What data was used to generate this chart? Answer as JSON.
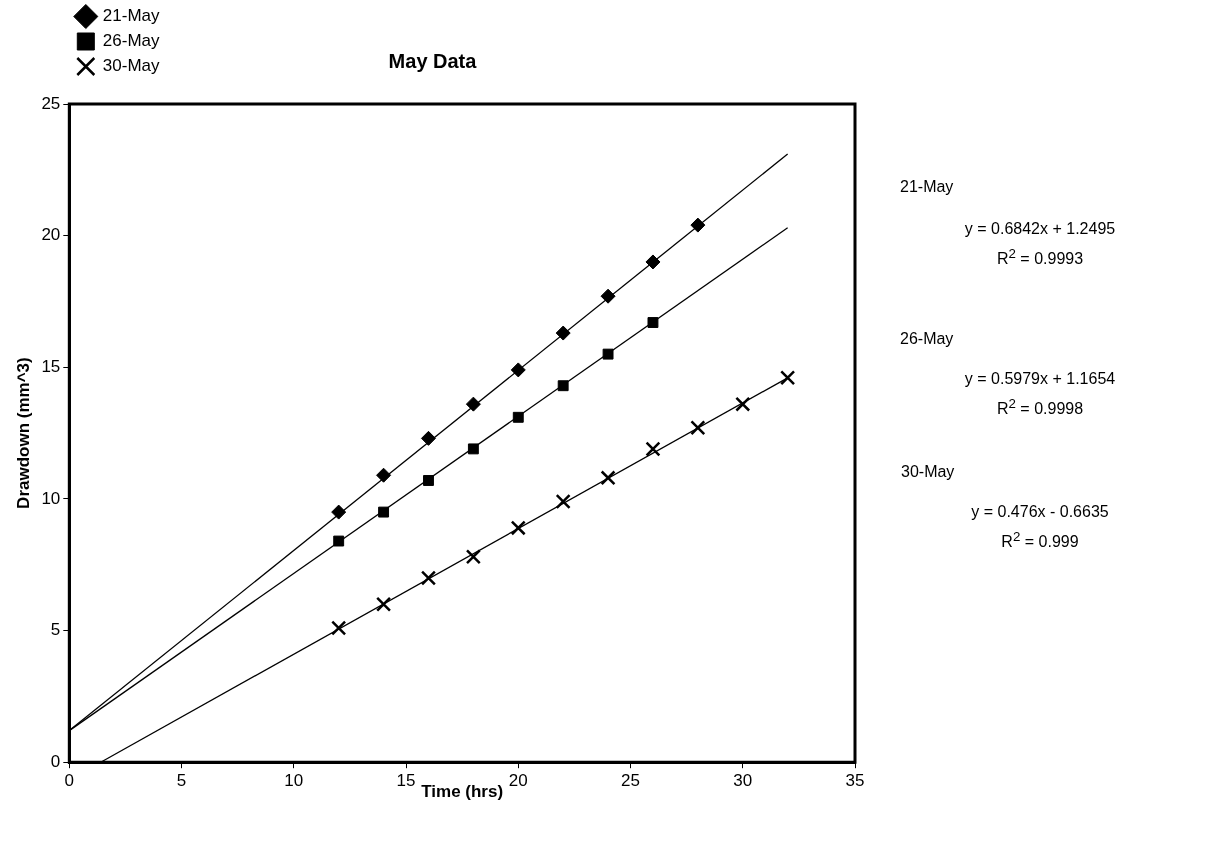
{
  "chart_data": {
    "type": "scatter",
    "title": "May Data",
    "xlabel": "Time (hrs)",
    "ylabel": "Drawdown (mm^3)",
    "xlim": [
      0,
      35
    ],
    "xticks": [
      0,
      5,
      10,
      15,
      20,
      25,
      30,
      35
    ],
    "ylim": [
      0,
      25
    ],
    "yticks": [
      0,
      5,
      10,
      15,
      20,
      25
    ],
    "grid": false,
    "legend": "top left",
    "series": [
      {
        "name": "21-May",
        "color": "#000000",
        "marker": "diamond",
        "x": [
          12,
          14,
          16,
          18,
          20,
          22,
          24,
          26,
          28
        ],
        "values": [
          9.5,
          10.9,
          12.3,
          13.6,
          14.9,
          16.3,
          17.7,
          19.0,
          20.4
        ]
      },
      {
        "name": "26-May",
        "color": "#000000",
        "marker": "square",
        "x": [
          12,
          14,
          16,
          18,
          20,
          22,
          24,
          26
        ],
        "values": [
          8.4,
          9.5,
          10.7,
          11.9,
          13.1,
          14.3,
          15.5,
          16.7
        ]
      },
      {
        "name": "30-May",
        "color": "#000000",
        "marker": "cross",
        "x": [
          12,
          14,
          16,
          18,
          20,
          22,
          24,
          26,
          28,
          30,
          32
        ],
        "values": [
          5.1,
          6.0,
          7.0,
          7.8,
          8.9,
          9.9,
          10.8,
          11.9,
          12.7,
          13.6,
          14.6
        ]
      },
      {
        "type": "line",
        "color": "#000000",
        "marker": "none",
        "x": [
          0,
          32
        ],
        "values": [
          1.2,
          23.1
        ]
      },
      {
        "type": "line",
        "color": "#000000",
        "marker": "none",
        "x": [
          0,
          32
        ],
        "values": [
          1.2,
          20.3
        ]
      },
      {
        "type": "line",
        "color": "#000000",
        "marker": "none",
        "x": [
          1.4,
          32
        ],
        "values": [
          0,
          14.6
        ]
      }
    ],
    "annotations": [
      "21-May",
      "y = 0.6842x + 1.2495",
      "R$^{2}$ = 0.9993",
      "26-May",
      "y = 0.5979x + 1.1654",
      "R$^{2}$ = 0.9998",
      "30-May",
      "y = 0.476x - 0.6635",
      "R$^{2}$ = 0.999"
    ]
  }
}
